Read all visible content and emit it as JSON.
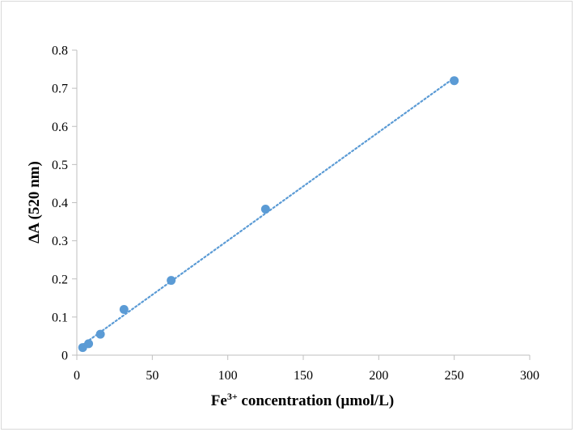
{
  "chart_data": {
    "type": "scatter",
    "title": "",
    "xlabel": {
      "prefix": "Fe",
      "superscript": "3+",
      "suffix": " concentration (µmol/L)"
    },
    "ylabel": "ΔA (520 nm)",
    "xlim": [
      0,
      300
    ],
    "ylim": [
      0,
      0.8
    ],
    "x_ticks": [
      0,
      50,
      100,
      150,
      200,
      250,
      300
    ],
    "x_tick_labels": [
      "0",
      "50",
      "100",
      "150",
      "200",
      "250",
      "300"
    ],
    "y_ticks": [
      0,
      0.1,
      0.2,
      0.3,
      0.4,
      0.5,
      0.6,
      0.7,
      0.8
    ],
    "y_tick_labels": [
      "0",
      "0.1",
      "0.2",
      "0.3",
      "0.4",
      "0.5",
      "0.6",
      "0.7",
      "0.8"
    ],
    "grid": false,
    "legend": "none",
    "series": [
      {
        "x": [
          3.9,
          7.8,
          15.6,
          31.25,
          62.5,
          125,
          250
        ],
        "y": [
          0.02,
          0.03,
          0.055,
          0.12,
          0.196,
          0.383,
          0.72
        ],
        "marker_color": "#5b9bd5",
        "trendline": {
          "type": "linear",
          "style": "dotted",
          "color": "#5b9bd5",
          "x_range": [
            3.9,
            250
          ]
        }
      }
    ]
  }
}
